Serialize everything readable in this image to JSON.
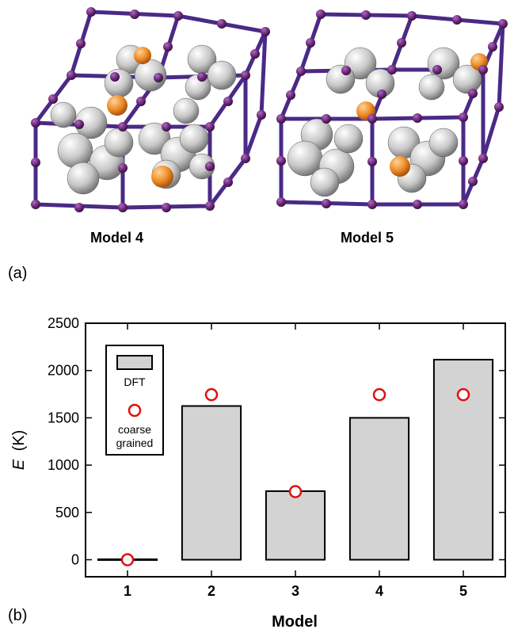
{
  "panel_a": {
    "label": "(a)",
    "models": [
      {
        "caption": "Model 4"
      },
      {
        "caption": "Model 5"
      }
    ]
  },
  "panel_b": {
    "label": "(b)"
  },
  "colors": {
    "bar_fill": "#d3d3d3",
    "bar_stroke": "#000000",
    "marker_stroke": "#dd1111",
    "framework_purple": "#4a2a86",
    "node_purple": "#6b2a7a",
    "guest_grey": "#c8c8c8",
    "guest_orange": "#ee8b24"
  },
  "chart_data": {
    "type": "bar",
    "categories": [
      "1",
      "2",
      "3",
      "4",
      "5"
    ],
    "xlabel": "Model",
    "ylabel_var": "E",
    "ylabel_unit": "(K)",
    "ylim": [
      -180,
      2500
    ],
    "yticks": [
      0,
      500,
      1000,
      1500,
      2000,
      2500
    ],
    "series": [
      {
        "name": "DFT",
        "mark": "bar",
        "values": [
          5,
          1625,
          725,
          1500,
          2115
        ]
      },
      {
        "name": "coarse grained",
        "mark": "open-circle",
        "values": [
          0,
          1745,
          720,
          1745,
          1745
        ]
      }
    ],
    "legend": {
      "position": "top-left",
      "entries": [
        {
          "label_lines": [
            "DFT"
          ]
        },
        {
          "label_lines": [
            "coarse",
            "grained"
          ]
        }
      ]
    }
  }
}
